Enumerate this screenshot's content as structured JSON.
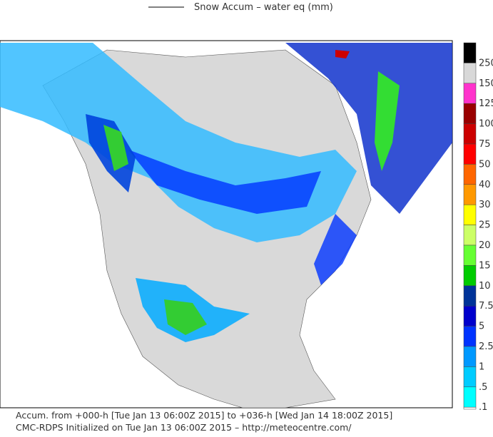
{
  "title": "Snow Accum – water eq (mm)",
  "legend": [
    {
      "label": "250",
      "color": "#000000"
    },
    {
      "label": "150",
      "color": "#d8d8d8"
    },
    {
      "label": "125",
      "color": "#ff33cc"
    },
    {
      "label": "100",
      "color": "#990000"
    },
    {
      "label": "75",
      "color": "#cc0000"
    },
    {
      "label": "50",
      "color": "#ff0000"
    },
    {
      "label": "40",
      "color": "#ff6600"
    },
    {
      "label": "30",
      "color": "#ff9900"
    },
    {
      "label": "25",
      "color": "#ffff00"
    },
    {
      "label": "20",
      "color": "#ccff66"
    },
    {
      "label": "15",
      "color": "#66ff33"
    },
    {
      "label": "10",
      "color": "#00cc00"
    },
    {
      "label": "7.5",
      "color": "#003399"
    },
    {
      "label": "5",
      "color": "#0000cc"
    },
    {
      "label": "2.5",
      "color": "#0033ff"
    },
    {
      "label": "1",
      "color": "#0099ff"
    },
    {
      "label": ".5",
      "color": "#00ccff"
    },
    {
      "label": ".1",
      "color": "#00ffff"
    }
  ],
  "footer": [
    "Accum. from +000-h [Tue Jan 13 06:00Z 2015] to +036-h [Wed Jan 14 18:00Z 2015]",
    "CMC-RDPS Initialized on Tue Jan 13 06:00Z 2015 – http://meteocentre.com/"
  ]
}
